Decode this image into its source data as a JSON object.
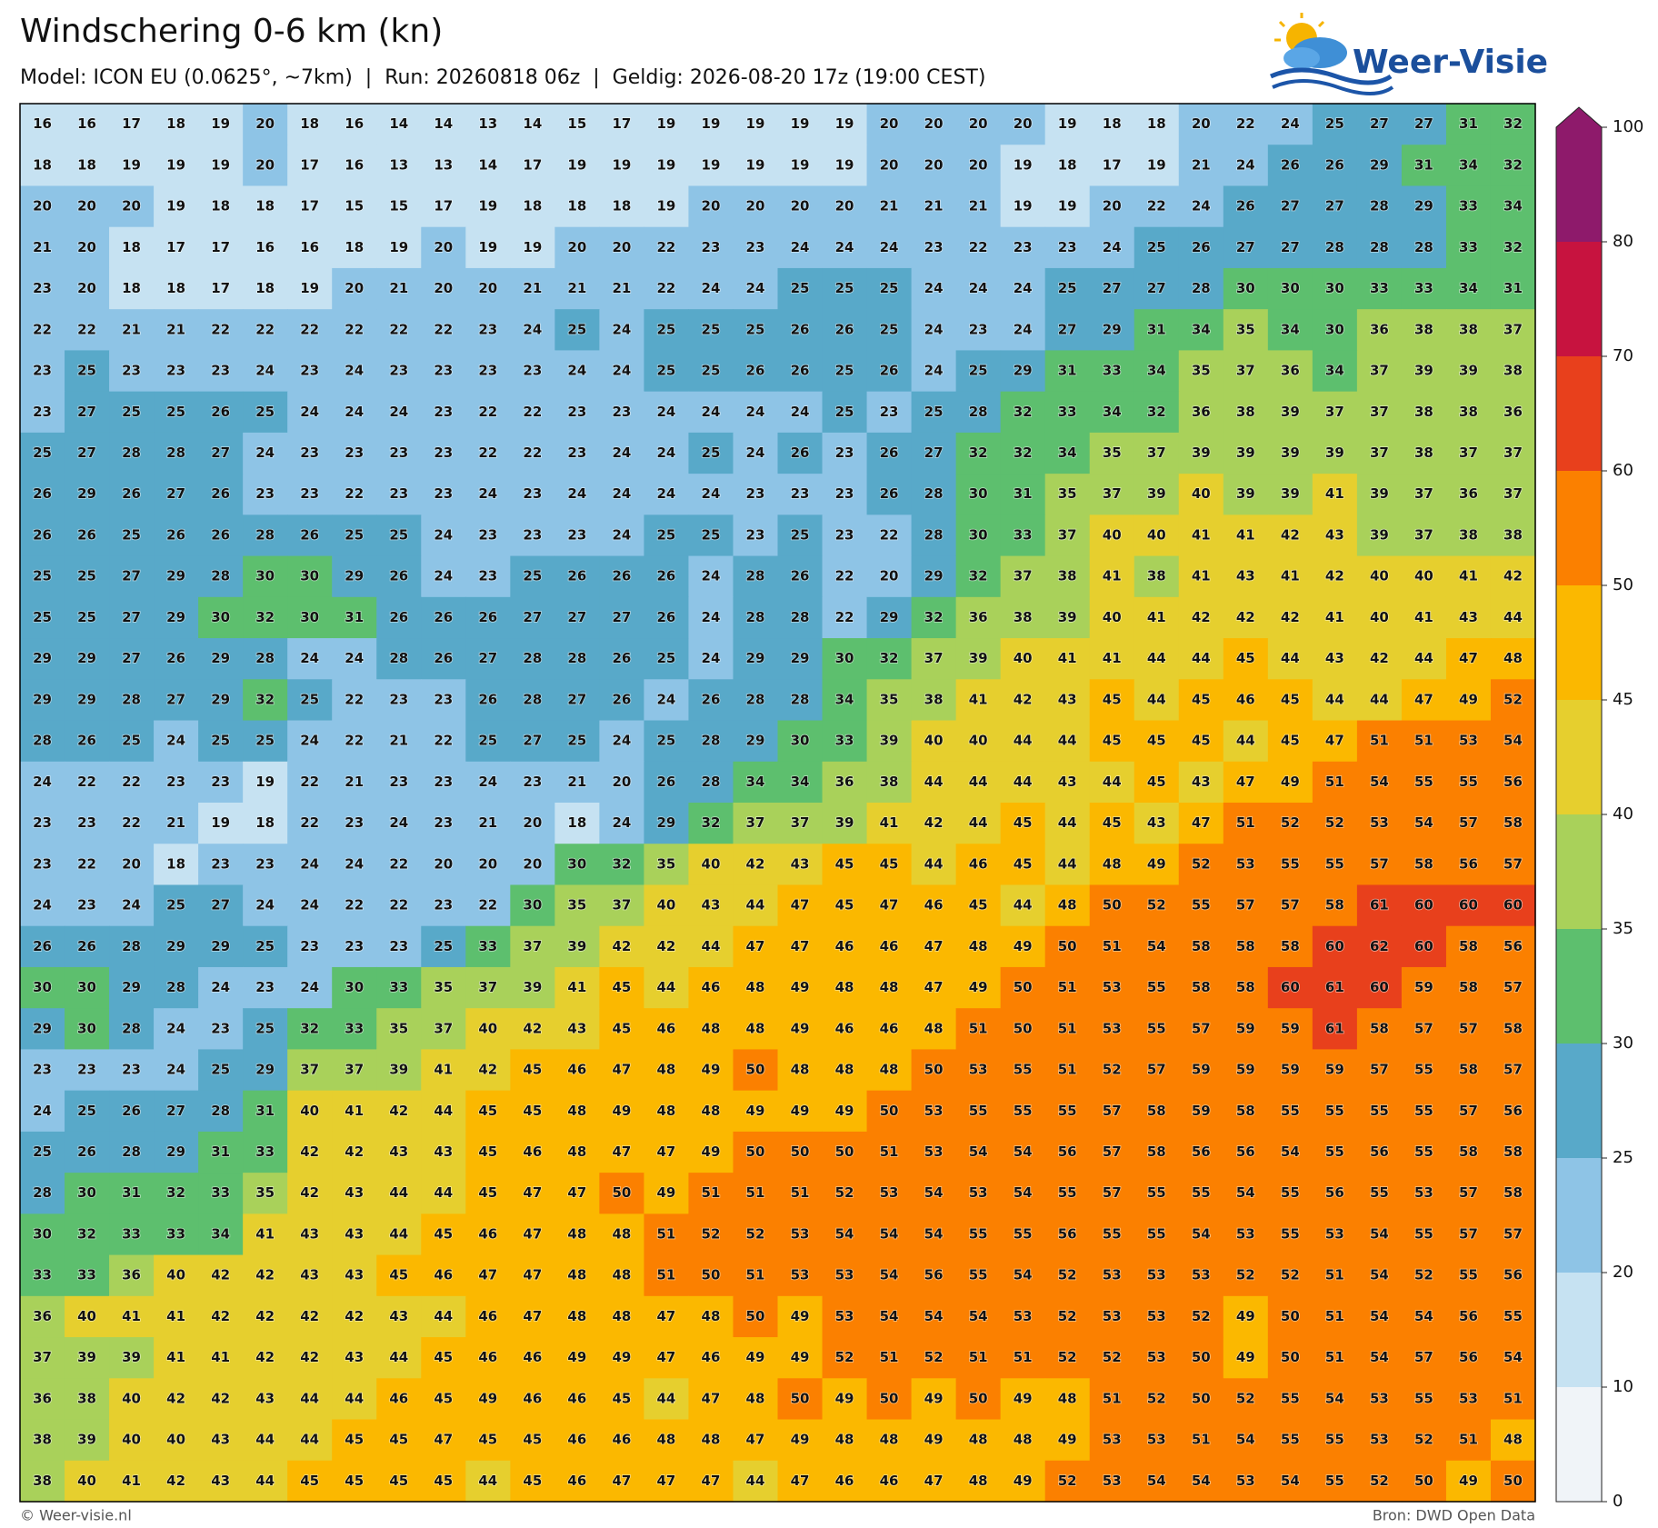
{
  "title": "Windschering 0-6 km (kn)",
  "subtitle": "Model: ICON EU (0.0625°, ~7km)  |  Run: 20260818 06z  |  Geldig: 2026-08-20 17z (19:00 CEST)",
  "logo_text": "Weer-Visie",
  "footer_left": "© Weer-visie.nl",
  "footer_right": "Bron: DWD Open Data",
  "colorbar": {
    "levels": [
      0,
      10,
      20,
      25,
      30,
      35,
      40,
      45,
      50,
      60,
      70,
      80,
      100
    ],
    "colors": [
      "#f0f4f8",
      "#c6e2f2",
      "#8ec4e6",
      "#58a9c9",
      "#5dbf6e",
      "#a9d15a",
      "#e6cf2e",
      "#fbb800",
      "#fb8000",
      "#e8401c",
      "#c7133f",
      "#8e1a6b"
    ]
  },
  "grid": {
    "rows": [
      [
        16,
        16,
        17,
        18,
        19,
        20,
        18,
        16,
        14,
        14,
        13,
        14,
        15,
        17,
        19,
        19,
        19,
        19,
        19,
        20,
        20,
        20,
        20,
        19,
        18,
        18,
        20,
        22,
        24,
        25,
        27,
        27,
        31,
        32
      ],
      [
        18,
        18,
        19,
        19,
        19,
        20,
        17,
        16,
        13,
        13,
        14,
        17,
        19,
        19,
        19,
        19,
        19,
        19,
        19,
        20,
        20,
        20,
        19,
        18,
        17,
        19,
        21,
        24,
        26,
        26,
        29,
        31,
        34,
        32
      ],
      [
        20,
        20,
        20,
        19,
        18,
        18,
        17,
        15,
        15,
        17,
        19,
        18,
        18,
        18,
        19,
        20,
        20,
        20,
        20,
        21,
        21,
        21,
        19,
        19,
        20,
        22,
        24,
        26,
        27,
        27,
        28,
        29,
        33,
        34
      ],
      [
        21,
        20,
        18,
        17,
        17,
        16,
        16,
        18,
        19,
        20,
        19,
        19,
        20,
        20,
        22,
        23,
        23,
        24,
        24,
        24,
        23,
        22,
        23,
        23,
        24,
        25,
        26,
        27,
        27,
        28,
        28,
        28,
        33,
        32
      ],
      [
        23,
        20,
        18,
        18,
        17,
        18,
        19,
        20,
        21,
        20,
        20,
        21,
        21,
        21,
        22,
        24,
        24,
        25,
        25,
        25,
        24,
        24,
        24,
        25,
        27,
        27,
        28,
        30,
        30,
        30,
        33,
        33,
        34,
        31
      ],
      [
        22,
        22,
        21,
        21,
        22,
        22,
        22,
        22,
        22,
        22,
        23,
        24,
        25,
        24,
        25,
        25,
        25,
        26,
        26,
        25,
        24,
        23,
        24,
        27,
        29,
        31,
        34,
        35,
        34,
        30,
        36,
        38,
        38,
        37
      ],
      [
        23,
        25,
        23,
        23,
        23,
        24,
        23,
        24,
        23,
        23,
        23,
        23,
        24,
        24,
        25,
        25,
        26,
        26,
        25,
        26,
        24,
        25,
        29,
        31,
        33,
        34,
        35,
        37,
        36,
        34,
        37,
        39,
        39,
        38
      ],
      [
        23,
        27,
        25,
        25,
        26,
        25,
        24,
        24,
        24,
        23,
        22,
        22,
        23,
        23,
        24,
        24,
        24,
        24,
        25,
        23,
        25,
        28,
        32,
        33,
        34,
        32,
        36,
        38,
        39,
        37,
        37,
        38,
        38,
        36
      ],
      [
        25,
        27,
        28,
        28,
        27,
        24,
        23,
        23,
        23,
        23,
        22,
        22,
        23,
        24,
        24,
        25,
        24,
        26,
        23,
        26,
        27,
        32,
        32,
        34,
        35,
        37,
        39,
        39,
        39,
        39,
        37,
        38,
        37,
        37
      ],
      [
        26,
        29,
        26,
        27,
        26,
        23,
        23,
        22,
        23,
        23,
        24,
        23,
        24,
        24,
        24,
        24,
        23,
        23,
        23,
        26,
        28,
        30,
        31,
        35,
        37,
        39,
        40,
        39,
        39,
        41,
        39,
        37,
        36,
        37
      ],
      [
        26,
        26,
        25,
        26,
        26,
        28,
        26,
        25,
        25,
        24,
        23,
        23,
        23,
        24,
        25,
        25,
        23,
        25,
        23,
        22,
        28,
        30,
        33,
        37,
        40,
        40,
        41,
        41,
        42,
        43,
        39,
        37,
        38,
        38
      ],
      [
        25,
        25,
        27,
        29,
        28,
        30,
        30,
        29,
        26,
        24,
        23,
        25,
        26,
        26,
        26,
        24,
        28,
        26,
        22,
        20,
        29,
        32,
        37,
        38,
        41,
        38,
        41,
        43,
        41,
        42,
        40,
        40,
        41,
        42
      ],
      [
        25,
        25,
        27,
        29,
        30,
        32,
        30,
        31,
        26,
        26,
        26,
        27,
        27,
        27,
        26,
        24,
        28,
        28,
        22,
        29,
        32,
        36,
        38,
        39,
        40,
        41,
        42,
        42,
        42,
        41,
        40,
        41,
        43,
        44
      ],
      [
        29,
        29,
        27,
        26,
        29,
        28,
        24,
        24,
        28,
        26,
        27,
        28,
        28,
        26,
        25,
        24,
        29,
        29,
        30,
        32,
        37,
        39,
        40,
        41,
        41,
        44,
        44,
        45,
        44,
        43,
        42,
        44,
        47,
        48
      ],
      [
        29,
        29,
        28,
        27,
        29,
        32,
        25,
        22,
        23,
        23,
        26,
        28,
        27,
        26,
        24,
        26,
        28,
        28,
        34,
        35,
        38,
        41,
        42,
        43,
        45,
        44,
        45,
        46,
        45,
        44,
        44,
        47,
        49,
        52
      ],
      [
        28,
        26,
        25,
        24,
        25,
        25,
        24,
        22,
        21,
        22,
        25,
        27,
        25,
        24,
        25,
        28,
        29,
        30,
        33,
        39,
        40,
        40,
        44,
        44,
        45,
        45,
        45,
        44,
        45,
        47,
        51,
        51,
        53,
        54
      ],
      [
        24,
        22,
        22,
        23,
        23,
        19,
        22,
        21,
        23,
        23,
        24,
        23,
        21,
        20,
        26,
        28,
        34,
        34,
        36,
        38,
        44,
        44,
        44,
        43,
        44,
        45,
        43,
        47,
        49,
        51,
        54,
        55,
        55,
        56
      ],
      [
        23,
        23,
        22,
        21,
        19,
        18,
        22,
        23,
        24,
        23,
        21,
        20,
        18,
        24,
        29,
        32,
        37,
        37,
        39,
        41,
        42,
        44,
        45,
        44,
        45,
        43,
        47,
        51,
        52,
        52,
        53,
        54,
        57,
        58
      ],
      [
        23,
        22,
        20,
        18,
        23,
        23,
        24,
        24,
        22,
        20,
        20,
        20,
        30,
        32,
        35,
        40,
        42,
        43,
        45,
        45,
        44,
        46,
        45,
        44,
        48,
        49,
        52,
        53,
        55,
        55,
        57,
        58,
        56,
        57
      ],
      [
        24,
        23,
        24,
        25,
        27,
        24,
        24,
        22,
        22,
        23,
        22,
        30,
        35,
        37,
        40,
        43,
        44,
        47,
        45,
        47,
        46,
        45,
        44,
        48,
        50,
        52,
        55,
        57,
        57,
        58,
        61,
        60,
        60,
        60
      ],
      [
        26,
        26,
        28,
        29,
        29,
        25,
        23,
        23,
        23,
        25,
        33,
        37,
        39,
        42,
        42,
        44,
        47,
        47,
        46,
        46,
        47,
        48,
        49,
        50,
        51,
        54,
        58,
        58,
        58,
        60,
        62,
        60,
        58,
        56
      ],
      [
        30,
        30,
        29,
        28,
        24,
        23,
        24,
        30,
        33,
        35,
        37,
        39,
        41,
        45,
        44,
        46,
        48,
        49,
        48,
        48,
        47,
        49,
        50,
        51,
        53,
        55,
        58,
        58,
        60,
        61,
        60,
        59,
        58,
        57
      ],
      [
        29,
        30,
        28,
        24,
        23,
        25,
        32,
        33,
        35,
        37,
        40,
        42,
        43,
        45,
        46,
        48,
        48,
        49,
        46,
        46,
        48,
        51,
        50,
        51,
        53,
        55,
        57,
        59,
        59,
        61,
        58,
        57,
        57,
        58
      ],
      [
        23,
        23,
        23,
        24,
        25,
        29,
        37,
        37,
        39,
        41,
        42,
        45,
        46,
        47,
        48,
        49,
        50,
        48,
        48,
        48,
        50,
        53,
        55,
        51,
        52,
        57,
        59,
        59,
        59,
        59,
        57,
        55,
        58,
        57
      ],
      [
        24,
        25,
        26,
        27,
        28,
        31,
        40,
        41,
        42,
        44,
        45,
        45,
        48,
        49,
        48,
        48,
        49,
        49,
        49,
        50,
        53,
        55,
        55,
        55,
        57,
        58,
        59,
        58,
        55,
        55,
        55,
        55,
        57,
        56
      ],
      [
        25,
        26,
        28,
        29,
        31,
        33,
        42,
        42,
        43,
        43,
        45,
        46,
        48,
        47,
        47,
        49,
        50,
        50,
        50,
        51,
        53,
        54,
        54,
        56,
        57,
        58,
        56,
        56,
        54,
        55,
        56,
        55,
        58,
        58
      ],
      [
        28,
        30,
        31,
        32,
        33,
        35,
        42,
        43,
        44,
        44,
        45,
        47,
        47,
        50,
        49,
        51,
        51,
        51,
        52,
        53,
        54,
        53,
        54,
        55,
        57,
        55,
        55,
        54,
        55,
        56,
        55,
        53,
        57,
        58
      ],
      [
        30,
        32,
        33,
        33,
        34,
        41,
        43,
        43,
        44,
        45,
        46,
        47,
        48,
        48,
        51,
        52,
        52,
        53,
        54,
        54,
        54,
        55,
        55,
        56,
        55,
        55,
        54,
        53,
        55,
        53,
        54,
        55,
        57,
        57
      ],
      [
        33,
        33,
        36,
        40,
        42,
        42,
        43,
        43,
        45,
        46,
        47,
        47,
        48,
        48,
        51,
        50,
        51,
        53,
        53,
        54,
        56,
        55,
        54,
        52,
        53,
        53,
        53,
        52,
        52,
        51,
        54,
        52,
        55,
        56
      ],
      [
        36,
        40,
        41,
        41,
        42,
        42,
        42,
        42,
        43,
        44,
        46,
        47,
        48,
        48,
        47,
        48,
        50,
        49,
        53,
        54,
        54,
        54,
        53,
        52,
        53,
        53,
        52,
        49,
        50,
        51,
        54,
        54,
        56,
        55
      ],
      [
        37,
        39,
        39,
        41,
        41,
        42,
        42,
        43,
        44,
        45,
        46,
        46,
        49,
        49,
        47,
        46,
        49,
        49,
        52,
        51,
        52,
        51,
        51,
        52,
        52,
        53,
        50,
        49,
        50,
        51,
        54,
        57,
        56,
        54
      ],
      [
        36,
        38,
        40,
        42,
        42,
        43,
        44,
        44,
        46,
        45,
        49,
        46,
        46,
        45,
        44,
        47,
        48,
        50,
        49,
        50,
        49,
        50,
        49,
        48,
        51,
        52,
        50,
        52,
        55,
        54,
        53,
        55,
        53,
        51
      ],
      [
        38,
        39,
        40,
        40,
        43,
        44,
        44,
        45,
        45,
        47,
        45,
        45,
        46,
        46,
        48,
        48,
        47,
        49,
        48,
        48,
        49,
        48,
        48,
        49,
        53,
        53,
        51,
        54,
        55,
        55,
        53,
        52,
        51,
        48
      ],
      [
        38,
        40,
        41,
        42,
        43,
        44,
        45,
        45,
        45,
        45,
        44,
        45,
        46,
        47,
        47,
        47,
        44,
        47,
        46,
        46,
        47,
        48,
        49,
        52,
        53,
        54,
        54,
        53,
        54,
        55,
        52,
        50,
        49,
        50
      ]
    ]
  }
}
